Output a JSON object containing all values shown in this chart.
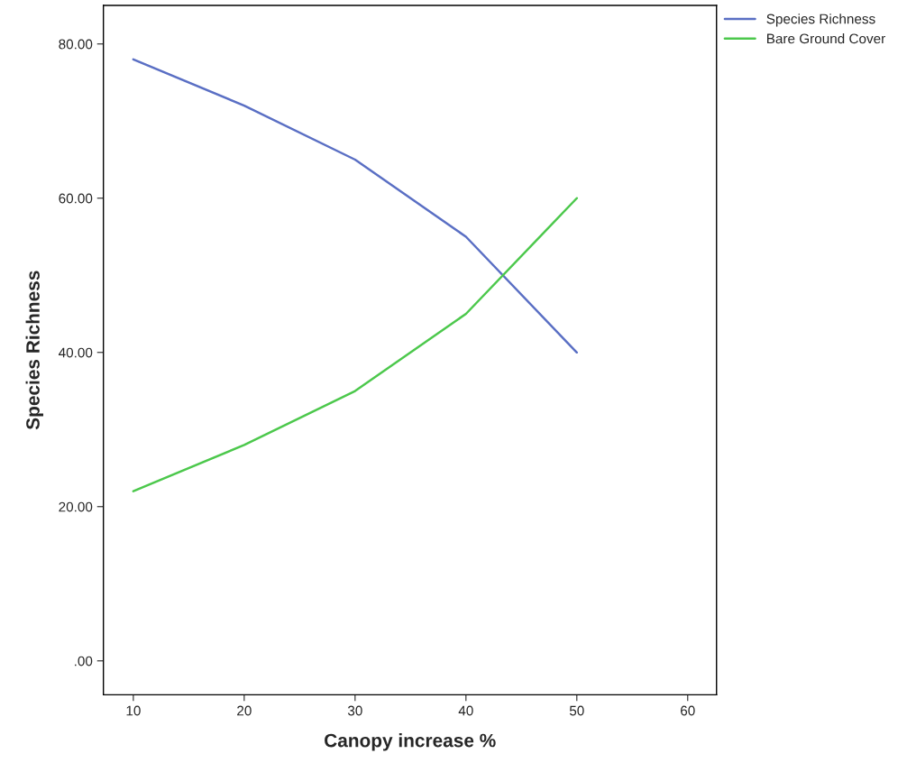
{
  "chart_data": {
    "type": "line",
    "xlabel": "Canopy increase %",
    "ylabel": "Species Richness",
    "x": [
      10,
      20,
      30,
      40,
      50
    ],
    "series": [
      {
        "name": "Species Richness",
        "color": "#5a6fc4",
        "values": [
          78,
          72,
          65,
          55,
          40
        ]
      },
      {
        "name": "Bare Ground Cover",
        "color": "#4cc84c",
        "values": [
          22,
          28,
          35,
          45,
          60
        ]
      }
    ],
    "xlim": [
      7.3,
      62.6
    ],
    "xticks": [
      10,
      20,
      30,
      40,
      50,
      60
    ],
    "ylim": [
      -4.4,
      85
    ],
    "yticks": [
      {
        "value": 0,
        "label": ".00"
      },
      {
        "value": 20,
        "label": "20.00"
      },
      {
        "value": 40,
        "label": "40.00"
      },
      {
        "value": 60,
        "label": "60.00"
      },
      {
        "value": 80,
        "label": "80.00"
      }
    ],
    "grid": false,
    "legend": "top right",
    "marker": "none",
    "line_style": "solid"
  }
}
